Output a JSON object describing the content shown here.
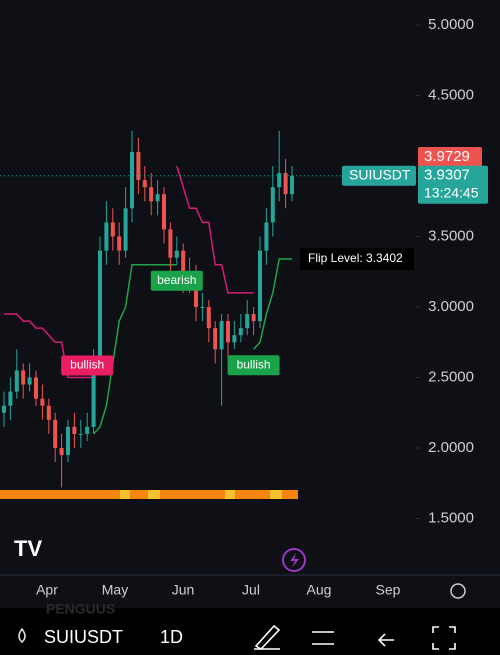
{
  "chart": {
    "yticks": [
      {
        "value": 5,
        "label": "5.0000"
      },
      {
        "value": 4.5,
        "label": "4.5000"
      },
      {
        "value": 4,
        "label": "4.0000"
      },
      {
        "value": 3.5,
        "label": "3.5000"
      },
      {
        "value": 3,
        "label": "3.0000"
      },
      {
        "value": 2.5,
        "label": "2.5000"
      },
      {
        "value": 2,
        "label": "2.0000"
      },
      {
        "value": 1.5,
        "label": "1.5000"
      }
    ],
    "months": [
      "Apr",
      "May",
      "Jun",
      "Jul",
      "Aug",
      "Sep"
    ],
    "open": [
      2.25,
      2.3,
      2.4,
      2.55,
      2.45,
      2.5,
      2.35,
      2.3,
      2.2,
      2.0,
      1.95,
      2.15,
      2.1,
      2.1,
      2.15,
      2.6,
      3.4,
      3.6,
      3.5,
      3.4,
      3.7,
      4.1,
      3.9,
      3.85,
      3.75,
      3.8,
      3.55,
      3.35,
      3.4,
      3.2,
      3.25,
      3.0,
      3.0,
      2.85,
      2.7,
      2.9,
      2.75,
      2.8,
      2.85,
      2.95,
      2.9,
      3.4,
      3.6,
      3.85,
      3.95,
      3.8
    ],
    "high": [
      2.4,
      2.5,
      2.7,
      2.6,
      2.6,
      2.55,
      2.45,
      2.35,
      2.25,
      2.1,
      2.2,
      2.25,
      2.2,
      2.25,
      2.7,
      3.5,
      3.75,
      3.7,
      3.6,
      3.85,
      4.25,
      4.2,
      4.0,
      3.95,
      3.9,
      3.85,
      3.6,
      3.5,
      3.45,
      3.35,
      3.3,
      3.1,
      3.05,
      2.9,
      2.95,
      2.95,
      2.9,
      2.95,
      3.05,
      3.0,
      3.5,
      3.7,
      4.0,
      4.25,
      4.05,
      4.0
    ],
    "low": [
      2.15,
      2.2,
      2.35,
      2.35,
      2.4,
      2.3,
      2.2,
      2.1,
      1.9,
      1.72,
      1.9,
      2.0,
      2.0,
      2.05,
      2.1,
      2.55,
      3.3,
      3.4,
      3.3,
      3.35,
      3.6,
      3.8,
      3.75,
      3.65,
      3.65,
      3.45,
      3.25,
      3.3,
      3.1,
      3.1,
      2.9,
      2.9,
      2.75,
      2.6,
      2.3,
      2.65,
      2.7,
      2.75,
      2.8,
      2.8,
      2.85,
      3.3,
      3.5,
      3.75,
      3.7,
      3.75
    ],
    "close": [
      2.3,
      2.4,
      2.55,
      2.45,
      2.5,
      2.35,
      2.3,
      2.2,
      2.0,
      1.95,
      2.15,
      2.1,
      2.1,
      2.15,
      2.6,
      3.4,
      3.6,
      3.5,
      3.4,
      3.7,
      4.1,
      3.9,
      3.85,
      3.75,
      3.8,
      3.55,
      3.35,
      3.4,
      3.2,
      3.25,
      3.0,
      3.0,
      2.85,
      2.7,
      2.9,
      2.75,
      2.8,
      2.85,
      2.95,
      2.9,
      3.4,
      3.6,
      3.85,
      3.95,
      3.8,
      3.93
    ],
    "bear_line": [
      2.95,
      2.95,
      2.95,
      2.9,
      2.9,
      2.85,
      2.85,
      2.8,
      2.75,
      2.75,
      2.5,
      2.5,
      2.5,
      2.5,
      2.5,
      null,
      null,
      null,
      null,
      null,
      null,
      null,
      null,
      null,
      null,
      null,
      null,
      4.0,
      3.85,
      3.7,
      3.7,
      3.6,
      3.6,
      3.3,
      3.3,
      3.1,
      3.1,
      3.1,
      3.1,
      3.1,
      null,
      null,
      null,
      null,
      null,
      null
    ],
    "bull_line": [
      null,
      null,
      null,
      null,
      null,
      null,
      null,
      null,
      null,
      null,
      null,
      null,
      null,
      null,
      2.1,
      2.15,
      2.3,
      2.6,
      2.9,
      3.0,
      3.3,
      3.3,
      3.3,
      3.3,
      3.3,
      3.3,
      3.3,
      3.3,
      null,
      null,
      null,
      null,
      null,
      null,
      null,
      null,
      null,
      null,
      null,
      2.7,
      2.75,
      2.95,
      3.1,
      3.34,
      3.34,
      3.34
    ],
    "signals": [
      {
        "index": 13,
        "label": "bullish"
      },
      {
        "index": 27,
        "label": "bearish"
      },
      {
        "index": 39,
        "label": "bullish"
      }
    ],
    "flip_label": "Flip Level: 3.3402",
    "mark_price": 3.9729,
    "symbol": "SUIUSDT",
    "last_price": 3.9307,
    "countdown": "13:24:45"
  },
  "toolbar": {
    "watermark": "PENGUUS",
    "symbol": "SUIUSDT",
    "interval": "1D"
  }
}
